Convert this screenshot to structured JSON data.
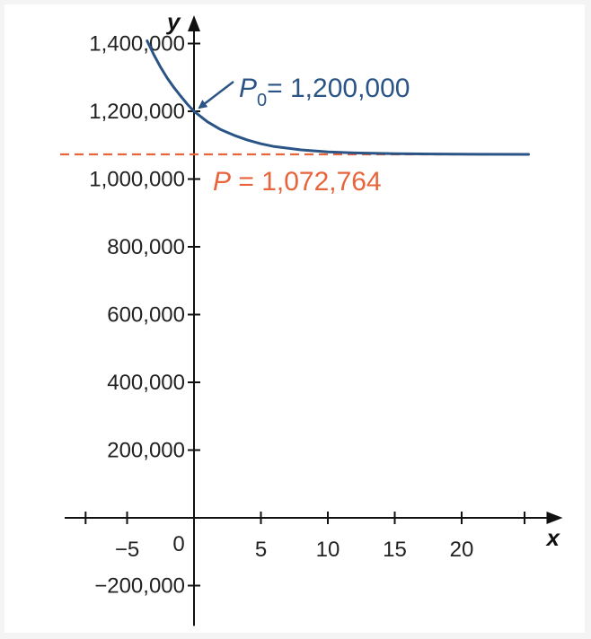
{
  "chart_data": {
    "type": "line",
    "title": "",
    "xlabel": "x",
    "ylabel": "y",
    "xlim": [
      -10,
      25
    ],
    "ylim": [
      -250000,
      1450000
    ],
    "grid": false,
    "x_ticks": [
      -5,
      5,
      10,
      15,
      20
    ],
    "x_tick_labels": [
      "−5",
      "5",
      "10",
      "15",
      "20"
    ],
    "origin_label": "0",
    "y_ticks": [
      -200000,
      200000,
      400000,
      600000,
      800000,
      1000000,
      1200000,
      1400000
    ],
    "y_tick_labels": [
      "−200,000",
      "200,000",
      "400,000",
      "600,000",
      "800,000",
      "1,000,000",
      "1,200,000",
      "1,400,000"
    ],
    "series": [
      {
        "color": "#2b5486",
        "x": [
          -3.5,
          -3,
          -2.5,
          -2,
          -1.5,
          -1,
          -0.5,
          0,
          1,
          2,
          3,
          4,
          5,
          6,
          8,
          10,
          12,
          15,
          18,
          21,
          25
        ],
        "y": [
          1408000,
          1367000,
          1330000,
          1298000,
          1270000,
          1245000,
          1221000,
          1200000,
          1169000,
          1146000,
          1129000,
          1115000,
          1104000,
          1096000,
          1086000,
          1080000,
          1077000,
          1075000,
          1074000,
          1073200,
          1072764
        ]
      }
    ],
    "asymptote": {
      "y": 1072764,
      "color": "#e8643c",
      "style": "dashed",
      "x_range": [
        -10,
        25
      ]
    },
    "annotations": [
      {
        "symbol": "P",
        "subscript": "0",
        "text": "= 1,200,000",
        "color": "#2b5486",
        "point": [
          0,
          1200000
        ]
      },
      {
        "symbol": "P",
        "subscript": "",
        "text": " = 1,072,764",
        "color": "#e8643c"
      }
    ]
  }
}
